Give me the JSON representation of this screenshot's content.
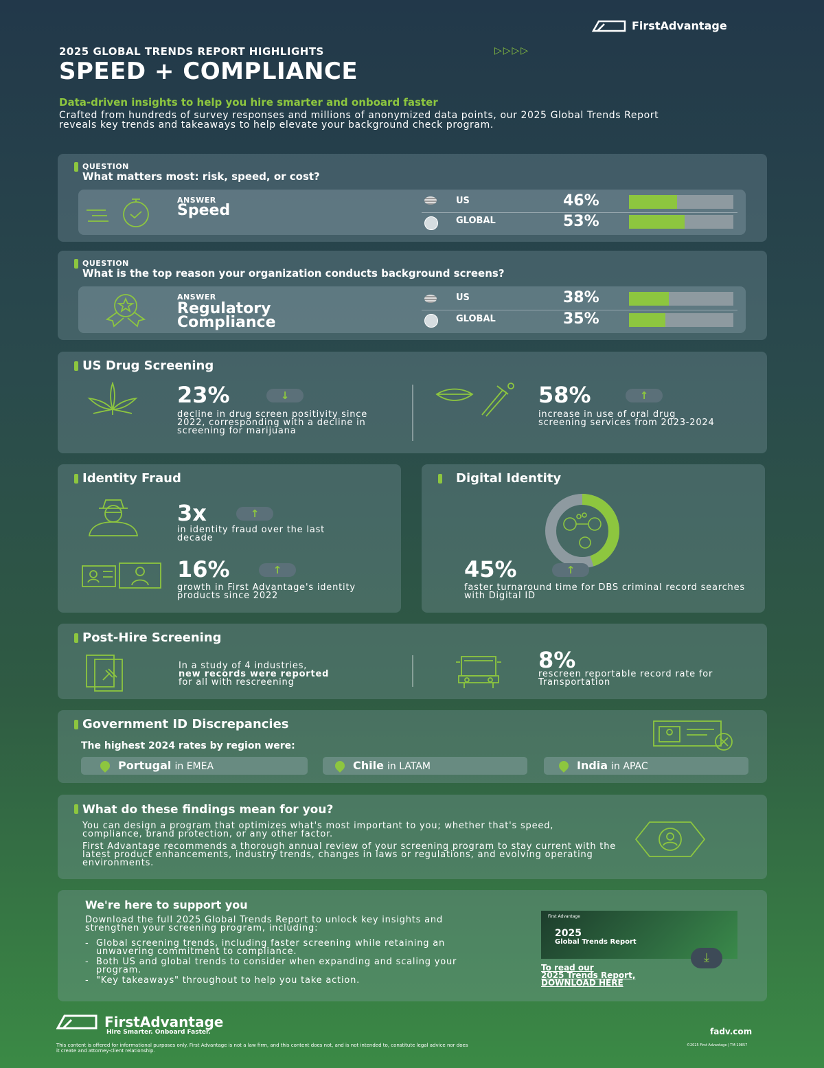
{
  "brand": {
    "name": "FirstAdvantage",
    "tagline": "Hire Smarter. Onboard Faster.",
    "url": "fadv.com"
  },
  "header": {
    "eyebrow": "2025 GLOBAL TRENDS REPORT HIGHLIGHTS",
    "title": "SPEED + COMPLIANCE",
    "subtitle": "Data-driven insights to help you hire smarter and onboard faster",
    "intro": "Crafted from hundreds of survey responses and millions of anonymized data points, our 2025 Global Trends Report reveals key trends and takeaways to help elevate your background check program."
  },
  "q1": {
    "question_label": "QUESTION",
    "question": "What matters most: risk, speed, or cost?",
    "answer_label": "ANSWER",
    "answer": "Speed",
    "rows": [
      {
        "region": "US",
        "value": "46%",
        "fraction": 0.46
      },
      {
        "region": "GLOBAL",
        "value": "53%",
        "fraction": 0.53
      }
    ]
  },
  "q2": {
    "question_label": "QUESTION",
    "question": "What is the top reason your organization conducts background screens?",
    "answer_label": "ANSWER",
    "answer_line1": "Regulatory",
    "answer_line2": "Compliance",
    "rows": [
      {
        "region": "US",
        "value": "38%",
        "fraction": 0.38
      },
      {
        "region": "GLOBAL",
        "value": "35%",
        "fraction": 0.35
      }
    ]
  },
  "drug": {
    "title": "US Drug Screening",
    "stat1": {
      "value": "23%",
      "desc": "decline in drug screen positivity since 2022, corresponding with a decline in screening for marijuana",
      "direction": "down"
    },
    "stat2": {
      "value": "58%",
      "desc": "increase in use of oral drug screening services from 2023-2024",
      "direction": "up"
    }
  },
  "identity": {
    "title": "Identity Fraud",
    "stat1": {
      "value": "3x",
      "desc": "in identity fraud over the last decade"
    },
    "stat2": {
      "value": "16%",
      "desc": "growth in First Advantage's identity products since 2022"
    }
  },
  "digital": {
    "title": "Digital Identity",
    "stat": {
      "value": "45%",
      "desc": "faster turnaround time for DBS criminal record searches with Digital ID",
      "fraction": 0.45
    }
  },
  "posthire": {
    "title": "Post-Hire Screening",
    "text_line1": "In a study of 4 industries,",
    "text_bold": "new records were reported",
    "text_line3": "for all with rescreening",
    "stat": {
      "value": "8%",
      "desc": "rescreen reportable record rate for Transportation"
    }
  },
  "gov": {
    "title": "Government ID Discrepancies",
    "subtitle": "The highest 2024 rates by region were:",
    "regions": [
      {
        "country": "Portugal",
        "region": "in EMEA"
      },
      {
        "country": "Chile",
        "region": "in LATAM"
      },
      {
        "country": "India",
        "region": "in APAC"
      }
    ]
  },
  "findings": {
    "title": "What do these findings mean for you?",
    "p1": "You can design a program that optimizes what's most important to you; whether that's speed, compliance, brand protection, or any other factor.",
    "p2": "First Advantage recommends a thorough annual review of your screening program to stay current with the latest product enhancements, industry trends, changes in laws or regulations, and evolving operating environments."
  },
  "support": {
    "title": "We're here to support you",
    "intro": "Download the full 2025 Global Trends Report to unlock key insights and strengthen your screening program, including:",
    "bullets": [
      "Global screening trends, including faster screening while retaining an unwavering commitment to compliance.",
      "Both US and global trends to consider when expanding and scaling your program.",
      "\"Key takeaways\" throughout to help you take action."
    ],
    "cover_brand": "First Advantage",
    "cover_year": "2025",
    "cover_title": "Global Trends Report",
    "cta_line1": "To read our",
    "cta_line2": "2025 Trends Report,",
    "cta_line3": "DOWNLOAD HERE"
  },
  "footer": {
    "disclaimer": "This content is offered for informational purposes only. First Advantage is not a law firm, and this content does not, and is not intended to, constitute legal advice nor does it create and attorney-client relationship.",
    "copyright": "©2025 First Advantage | TM-10857"
  },
  "colors": {
    "accent": "#8dc63f",
    "bar_track": "#8e9aa0",
    "bg_top": "#22384a",
    "bg_bottom": "#3b8a45"
  }
}
